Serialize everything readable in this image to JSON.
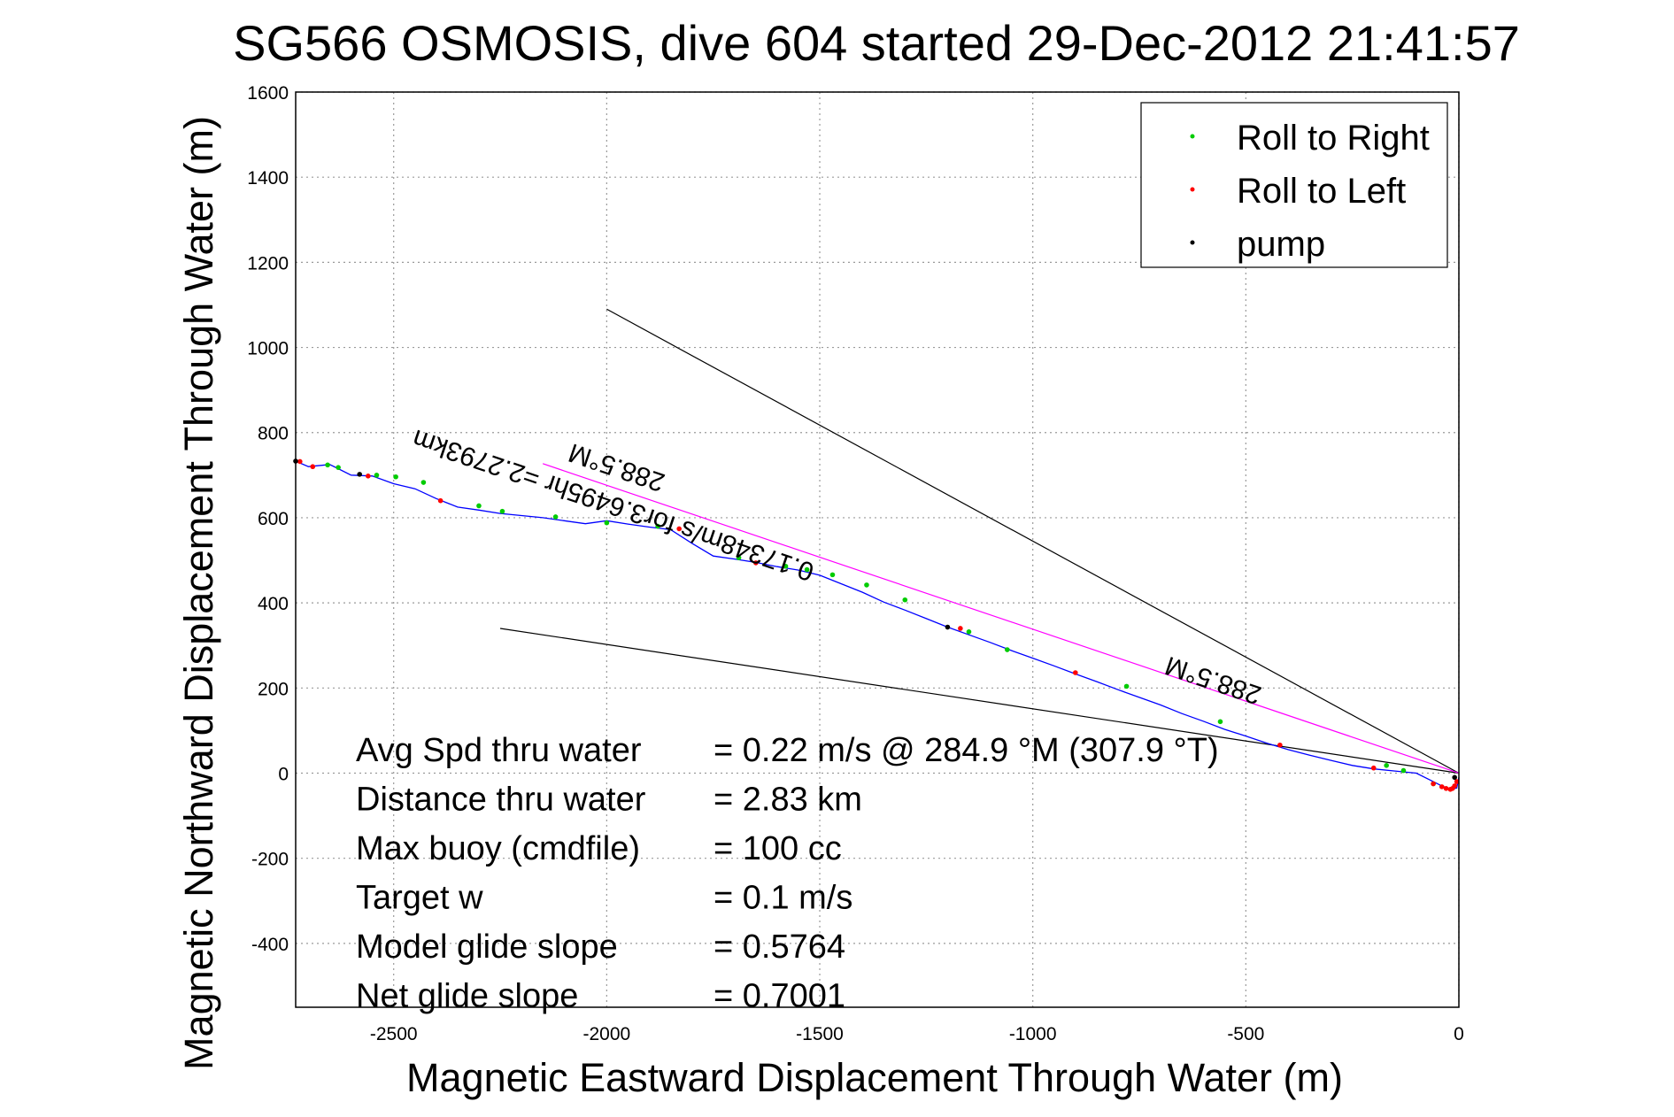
{
  "chart_data": {
    "type": "line",
    "title": "SG566 OSMOSIS, dive 604 started 29-Dec-2012 21:41:57",
    "xlabel": "Magnetic Eastward Displacement Through Water (m)",
    "ylabel": "Magnetic Northward Displacement Through Water (m)",
    "xlim": [
      -2730,
      0
    ],
    "ylim": [
      -550,
      1600
    ],
    "xticks": [
      -2500,
      -2000,
      -1500,
      -1000,
      -500,
      0
    ],
    "yticks": [
      1600,
      1400,
      1200,
      1000,
      800,
      600,
      400,
      200,
      0,
      -200,
      -400
    ],
    "grid": true,
    "legend_position": "top-right",
    "legend": [
      {
        "label": "Roll to Right",
        "color": "#00cc00"
      },
      {
        "label": "Roll to Left",
        "color": "#ff0000"
      },
      {
        "label": "pump",
        "color": "#000000"
      }
    ],
    "series": [
      {
        "color": "#0000ff",
        "x": [
          -2730,
          -2700,
          -2650,
          -2600,
          -2550,
          -2500,
          -2450,
          -2400,
          -2350,
          -2300,
          -2250,
          -2200,
          -2150,
          -2100,
          -2050,
          -2000,
          -1950,
          -1900,
          -1850,
          -1800,
          -1750,
          -1700,
          -1650,
          -1600,
          -1550,
          -1500,
          -1450,
          -1400,
          -1350,
          -1300,
          -1250,
          -1200,
          -1150,
          -1100,
          -1050,
          -1000,
          -950,
          -900,
          -850,
          -800,
          -750,
          -700,
          -650,
          -600,
          -550,
          -500,
          -450,
          -400,
          -350,
          -300,
          -250,
          -200,
          -150,
          -100,
          -70,
          -40,
          -20,
          -5,
          0
        ],
        "y": [
          733,
          720,
          725,
          700,
          698,
          680,
          668,
          645,
          625,
          618,
          610,
          605,
          600,
          593,
          586,
          593,
          585,
          578,
          572,
          540,
          510,
          503,
          495,
          485,
          477,
          465,
          445,
          425,
          402,
          383,
          363,
          343,
          325,
          307,
          288,
          270,
          252,
          233,
          215,
          196,
          178,
          160,
          140,
          122,
          103,
          87,
          70,
          55,
          42,
          30,
          18,
          10,
          5,
          0,
          -15,
          -30,
          -38,
          -35,
          -10
        ]
      }
    ],
    "markers": {
      "roll_right": {
        "x": [
          -2655,
          -2630,
          -2540,
          -2495,
          -2430,
          -2300,
          -2245,
          -2120,
          -2000,
          -1880,
          -1690,
          -1580,
          -1530,
          -1470,
          -1390,
          -1300,
          -1150,
          -1060,
          -780,
          -560,
          -170,
          -130,
          -60
        ],
        "y": [
          724,
          718,
          700,
          696,
          683,
          628,
          615,
          602,
          588,
          580,
          506,
          486,
          478,
          466,
          442,
          407,
          332,
          290,
          204,
          121,
          18,
          6,
          -25
        ]
      },
      "roll_left": {
        "x": [
          -2720,
          -2690,
          -2560,
          -2390,
          -1830,
          -1650,
          -1170,
          -900,
          -420,
          -200,
          -60,
          -40,
          -30,
          -20,
          -15,
          -10,
          -5
        ],
        "y": [
          732,
          720,
          698,
          640,
          574,
          494,
          340,
          236,
          66,
          12,
          -25,
          -32,
          -36,
          -38,
          -36,
          -30,
          -20
        ]
      },
      "pump": {
        "x": [
          -2730,
          -2580,
          -1200,
          -10
        ],
        "y": [
          733,
          702,
          343,
          -10
        ]
      }
    },
    "reference_lines": [
      {
        "color": "#000000",
        "x": [
          -2000,
          0
        ],
        "y": [
          1090,
          0
        ]
      },
      {
        "color": "#000000",
        "x": [
          -2250,
          0
        ],
        "y": [
          340,
          0
        ]
      },
      {
        "color": "#ff00ff",
        "x": [
          -2150,
          0
        ],
        "y": [
          727,
          0
        ]
      }
    ],
    "annotations": [
      {
        "text": "288.5°M",
        "x": -1860,
        "y": 700,
        "rotation": 18.7
      },
      {
        "text": "288.5°M",
        "x": -460,
        "y": 200,
        "rotation": 18.7
      },
      {
        "text": "0.17348m/s for3.6495hr =2.2793km",
        "x": -1510,
        "y": 490,
        "rotation": 18.7
      }
    ],
    "stats": [
      {
        "label": "Avg Spd thru water",
        "value": "=  0.22 m/s @ 284.9 °M (307.9 °T)"
      },
      {
        "label": "Distance thru water",
        "value": "=  2.83 km"
      },
      {
        "label": "Max buoy (cmdfile)",
        "value": "= 100 cc"
      },
      {
        "label": "Target w",
        "value": "= 0.1 m/s"
      },
      {
        "label": "Model glide slope",
        "value": "= 0.5764"
      },
      {
        "label": "Net glide slope",
        "value": "= 0.7001"
      }
    ]
  }
}
